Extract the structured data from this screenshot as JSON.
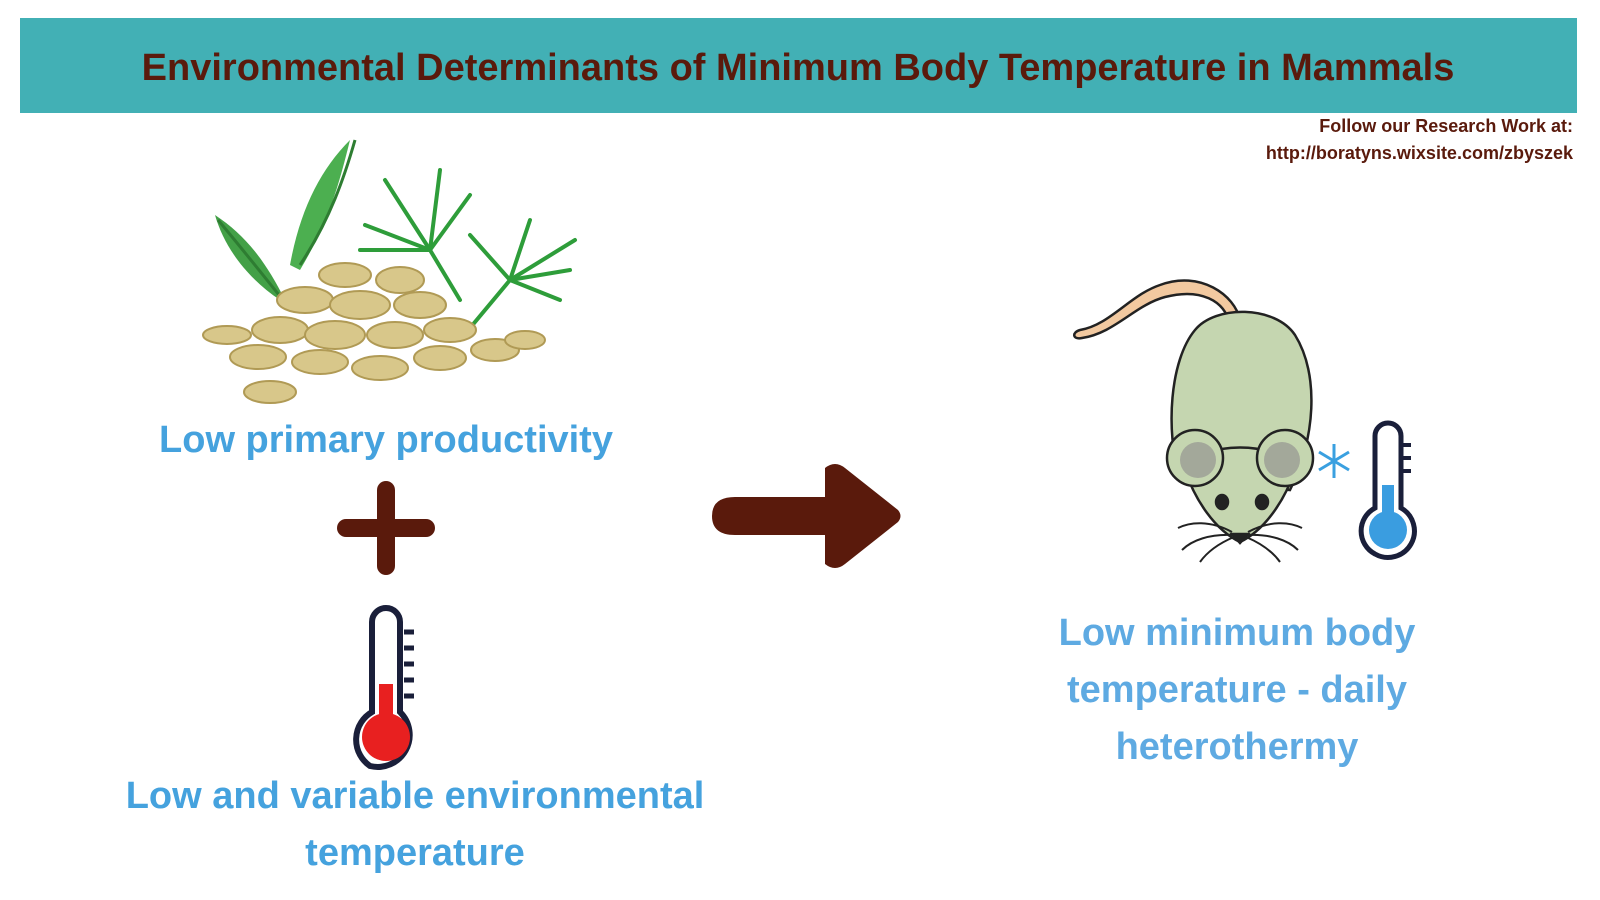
{
  "header": {
    "title": "Environmental Determinants of Minimum Body Temperature in Mammals",
    "note": [
      "Follow our Research Work at:",
      "http://boratyns.wixsite.com/zbyszek"
    ]
  },
  "causes": [
    {
      "label": [
        "Low primary productivity"
      ]
    },
    {
      "label": [
        "Low and variable environmental",
        "temperature"
      ]
    }
  ],
  "effect": {
    "label": [
      "Low minimum body",
      "temperature - daily",
      "heterothermy"
    ]
  }
}
